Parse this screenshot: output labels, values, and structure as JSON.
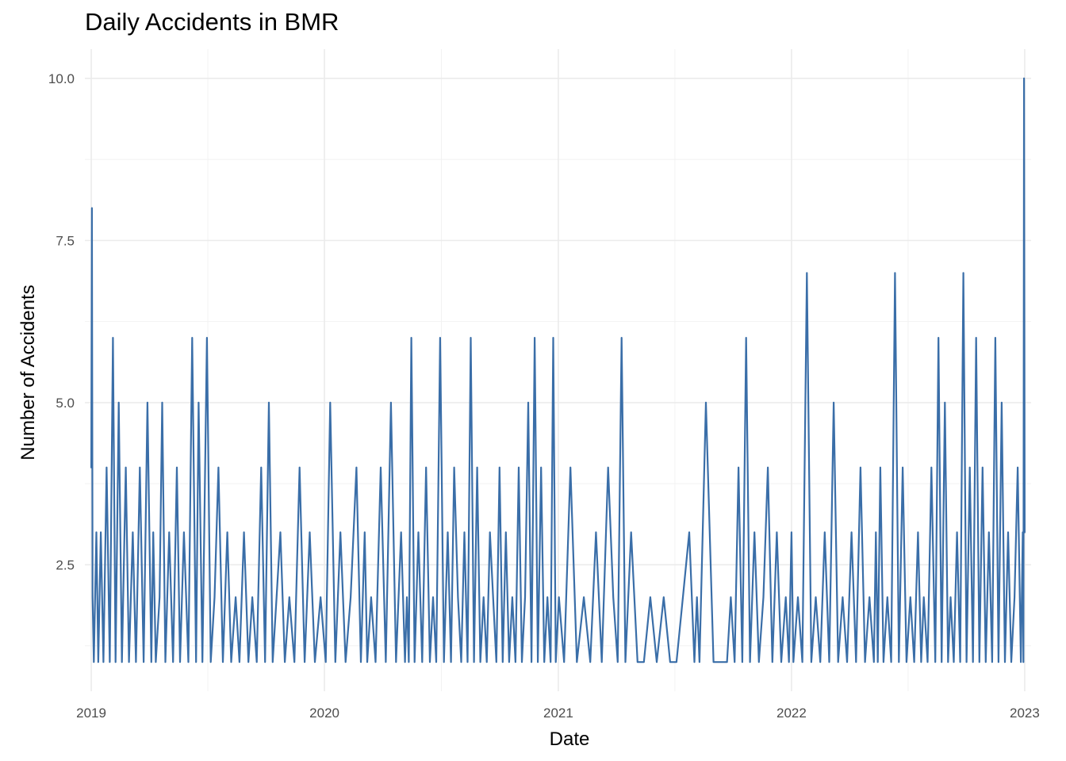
{
  "chart_data": {
    "type": "line",
    "title": "Daily Accidents in BMR",
    "xlabel": "Date",
    "ylabel": "Number of Accidents",
    "x_tick_labels": [
      "2019",
      "2020",
      "2021",
      "2022",
      "2023"
    ],
    "y_tick_labels": [
      "2.5",
      "5.0",
      "7.5",
      "10.0"
    ],
    "y_ticks": [
      2.5,
      5.0,
      7.5,
      10.0
    ],
    "xlim": [
      "2018-12-22",
      "2023-01-11"
    ],
    "ylim": [
      0.55,
      10.45
    ],
    "grid": true,
    "line_color": "#3a6ea8",
    "series": [
      {
        "x": [
          "2019-01-01",
          "2019-01-02",
          "2019-01-03",
          "2019-01-05",
          "2019-01-09",
          "2019-01-12",
          "2019-01-16",
          "2019-01-20",
          "2019-01-25",
          "2019-01-30",
          "2019-02-04",
          "2019-02-08",
          "2019-02-13",
          "2019-02-18",
          "2019-02-24",
          "2019-03-01",
          "2019-03-07",
          "2019-03-12",
          "2019-03-18",
          "2019-03-24",
          "2019-03-30",
          "2019-04-05",
          "2019-04-08",
          "2019-04-12",
          "2019-04-18",
          "2019-04-22",
          "2019-04-27",
          "2019-05-03",
          "2019-05-09",
          "2019-05-15",
          "2019-05-20",
          "2019-05-26",
          "2019-06-02",
          "2019-06-08",
          "2019-06-14",
          "2019-06-18",
          "2019-06-24",
          "2019-07-01",
          "2019-07-07",
          "2019-07-13",
          "2019-07-19",
          "2019-07-26",
          "2019-08-02",
          "2019-08-08",
          "2019-08-15",
          "2019-08-21",
          "2019-08-28",
          "2019-09-04",
          "2019-09-10",
          "2019-09-17",
          "2019-09-24",
          "2019-09-30",
          "2019-10-06",
          "2019-10-12",
          "2019-10-18",
          "2019-10-24",
          "2019-10-31",
          "2019-11-07",
          "2019-11-15",
          "2019-11-23",
          "2019-12-01",
          "2019-12-09",
          "2019-12-17",
          "2019-12-26",
          "2020-01-03",
          "2020-01-10",
          "2020-01-18",
          "2020-01-26",
          "2020-02-03",
          "2020-02-11",
          "2020-02-20",
          "2020-02-27",
          "2020-03-04",
          "2020-03-08",
          "2020-03-14",
          "2020-03-21",
          "2020-03-29",
          "2020-04-06",
          "2020-04-14",
          "2020-04-22",
          "2020-04-30",
          "2020-05-06",
          "2020-05-09",
          "2020-05-12",
          "2020-05-16",
          "2020-05-21",
          "2020-05-27",
          "2020-06-02",
          "2020-06-08",
          "2020-06-14",
          "2020-06-19",
          "2020-06-24",
          "2020-06-30",
          "2020-07-06",
          "2020-07-12",
          "2020-07-17",
          "2020-07-22",
          "2020-07-28",
          "2020-08-02",
          "2020-08-07",
          "2020-08-12",
          "2020-08-17",
          "2020-08-22",
          "2020-08-27",
          "2020-09-01",
          "2020-09-06",
          "2020-09-11",
          "2020-09-16",
          "2020-09-21",
          "2020-09-26",
          "2020-10-01",
          "2020-10-06",
          "2020-10-11",
          "2020-10-16",
          "2020-10-21",
          "2020-10-26",
          "2020-10-31",
          "2020-11-05",
          "2020-11-10",
          "2020-11-15",
          "2020-11-20",
          "2020-11-25",
          "2020-11-30",
          "2020-12-05",
          "2020-12-10",
          "2020-12-15",
          "2020-12-20",
          "2020-12-24",
          "2020-12-28",
          "2021-01-02",
          "2021-01-10",
          "2021-01-20",
          "2021-01-30",
          "2021-02-10",
          "2021-02-20",
          "2021-03-01",
          "2021-03-10",
          "2021-03-20",
          "2021-03-28",
          "2021-04-04",
          "2021-04-10",
          "2021-04-16",
          "2021-04-25",
          "2021-05-05",
          "2021-05-15",
          "2021-05-25",
          "2021-06-04",
          "2021-06-15",
          "2021-06-25",
          "2021-07-05",
          "2021-07-15",
          "2021-07-25",
          "2021-08-02",
          "2021-08-06",
          "2021-08-10",
          "2021-08-20",
          "2021-09-01",
          "2021-09-12",
          "2021-09-22",
          "2021-09-28",
          "2021-10-04",
          "2021-10-10",
          "2021-10-16",
          "2021-10-22",
          "2021-10-28",
          "2021-11-04",
          "2021-11-11",
          "2021-11-18",
          "2021-11-25",
          "2021-12-02",
          "2021-12-09",
          "2021-12-16",
          "2021-12-23",
          "2021-12-28",
          "2022-01-01",
          "2022-01-04",
          "2022-01-11",
          "2022-01-18",
          "2022-01-25",
          "2022-02-01",
          "2022-02-08",
          "2022-02-15",
          "2022-02-22",
          "2022-03-01",
          "2022-03-08",
          "2022-03-15",
          "2022-03-22",
          "2022-03-29",
          "2022-04-05",
          "2022-04-12",
          "2022-04-19",
          "2022-04-26",
          "2022-05-03",
          "2022-05-10",
          "2022-05-13",
          "2022-05-16",
          "2022-05-20",
          "2022-05-25",
          "2022-05-31",
          "2022-06-06",
          "2022-06-12",
          "2022-06-18",
          "2022-06-24",
          "2022-06-30",
          "2022-07-06",
          "2022-07-12",
          "2022-07-18",
          "2022-07-23",
          "2022-07-27",
          "2022-08-02",
          "2022-08-08",
          "2022-08-14",
          "2022-08-19",
          "2022-08-24",
          "2022-08-29",
          "2022-09-03",
          "2022-09-07",
          "2022-09-12",
          "2022-09-17",
          "2022-09-22",
          "2022-09-27",
          "2022-10-02",
          "2022-10-07",
          "2022-10-12",
          "2022-10-17",
          "2022-10-22",
          "2022-10-27",
          "2022-11-01",
          "2022-11-06",
          "2022-11-11",
          "2022-11-16",
          "2022-11-21",
          "2022-11-26",
          "2022-12-01",
          "2022-12-06",
          "2022-12-11",
          "2022-12-16",
          "2022-12-21",
          "2022-12-26",
          "2022-12-29",
          "2022-12-30",
          "2022-12-31",
          "2023-01-01"
        ],
        "y": [
          4,
          8,
          2,
          1,
          3,
          1,
          3,
          1,
          4,
          1,
          6,
          1,
          5,
          1,
          4,
          1,
          3,
          1,
          4,
          1,
          5,
          1,
          3,
          1,
          2,
          5,
          1,
          3,
          1,
          4,
          1,
          3,
          1,
          6,
          1,
          5,
          1,
          6,
          1,
          2,
          4,
          1,
          3,
          1,
          2,
          1,
          3,
          1,
          2,
          1,
          4,
          1,
          5,
          1,
          2,
          3,
          1,
          2,
          1,
          4,
          1,
          3,
          1,
          2,
          1,
          5,
          1,
          3,
          1,
          2,
          4,
          1,
          3,
          1,
          2,
          1,
          4,
          1,
          5,
          1,
          3,
          1,
          2,
          1,
          6,
          1,
          3,
          1,
          4,
          1,
          2,
          1,
          6,
          1,
          3,
          1,
          4,
          2,
          1,
          3,
          1,
          6,
          1,
          4,
          1,
          2,
          1,
          3,
          2,
          1,
          4,
          1,
          3,
          1,
          2,
          1,
          4,
          1,
          2,
          5,
          1,
          6,
          1,
          4,
          1,
          2,
          1,
          6,
          1,
          2,
          1,
          4,
          1,
          2,
          1,
          3,
          1,
          4,
          2,
          1,
          6,
          1,
          3,
          1,
          1,
          2,
          1,
          2,
          1,
          1,
          2,
          3,
          1,
          2,
          1,
          5,
          1,
          1,
          1,
          2,
          1,
          4,
          1,
          6,
          1,
          3,
          1,
          2,
          4,
          1,
          3,
          1,
          2,
          1,
          3,
          1,
          2,
          1,
          7,
          1,
          2,
          1,
          3,
          1,
          5,
          1,
          2,
          1,
          3,
          1,
          4,
          1,
          2,
          1,
          3,
          1,
          4,
          1,
          2,
          1,
          7,
          1,
          4,
          1,
          2,
          1,
          3,
          1,
          2,
          1,
          4,
          1,
          6,
          1,
          5,
          1,
          2,
          1,
          3,
          1,
          7,
          1,
          4,
          1,
          6,
          1,
          4,
          1,
          3,
          1,
          6,
          1,
          5,
          1,
          3,
          1,
          2,
          4,
          1,
          3,
          1,
          10,
          3
        ]
      }
    ]
  }
}
